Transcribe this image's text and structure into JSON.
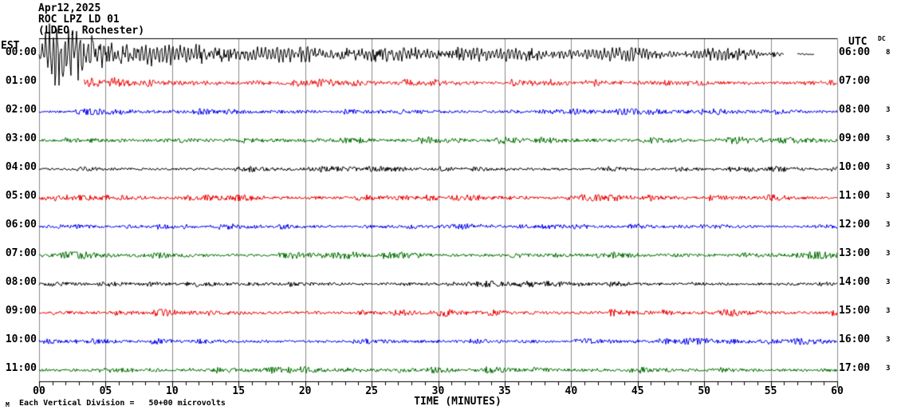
{
  "header": {
    "date": "Apr12,2025",
    "station": "ROC LPZ LD 01",
    "network": "(LDEO, Rochester)"
  },
  "axes": {
    "left_label": "EST",
    "right_label": "UTC",
    "dc_label": "DC",
    "x_label": "TIME (MINUTES)"
  },
  "footer": {
    "prefix": "M",
    "note": "Each Vertical Division =   50+00 microvolts"
  },
  "colors": {
    "black": "#000000",
    "red": "#ee0000",
    "blue": "#0000ee",
    "green": "#007000",
    "grid": "#8c8c8c",
    "frame": "#000000",
    "background": "#ffffff"
  },
  "chart_data": {
    "type": "line",
    "subtype": "helicorder-seismogram",
    "title": "ROC LPZ LD 01 (LDEO, Rochester) — Apr12,2025",
    "xlabel": "TIME (MINUTES)",
    "x_range": [
      0,
      60
    ],
    "x_major_tick_labels": [
      "00",
      "05",
      "10",
      "15",
      "20",
      "25",
      "30",
      "35",
      "40",
      "45",
      "50",
      "55",
      "60"
    ],
    "x_minor_tick_step_minutes": 1,
    "grid": "vertical lines every 5 minutes",
    "legend_position": "none",
    "annotations": {
      "event": "Large-amplitude seismic event begins ~00:01 EST on first trace, amplitude decays through the hour; elevated coda on 01:00 trace",
      "row0_data_gap": "00:00 trace ends near minute 56 with a small tail segment ~57-58.3, blank to 60",
      "row1_data_start": "01:00 trace begins near minute 3.4",
      "waveform_note": "waveforms are noise traces approximated by seeded pseudo-random envelopes"
    },
    "rows": [
      {
        "est": "00:00",
        "utc": "06:00",
        "dc": "8",
        "color": "black",
        "seed": 11,
        "segments": [
          {
            "start": 0,
            "end": 56.0,
            "sin": 0.55,
            "clamp": 1.15,
            "env": [
              [
                0,
                5
              ],
              [
                0.4,
                22
              ],
              [
                0.8,
                34
              ],
              [
                2.2,
                34
              ],
              [
                3.5,
                26
              ],
              [
                5,
                20
              ],
              [
                7,
                15
              ],
              [
                10,
                12
              ],
              [
                14,
                10
              ],
              [
                20,
                8.5
              ],
              [
                28,
                8
              ],
              [
                36,
                8
              ],
              [
                44,
                7.5
              ],
              [
                50,
                7
              ],
              [
                54,
                6
              ],
              [
                55.5,
                3.5
              ],
              [
                56,
                1.5
              ]
            ]
          },
          {
            "start": 57.0,
            "end": 58.3,
            "sin": 0.3,
            "clamp": 1.2,
            "env": [
              [
                57,
                1.4
              ],
              [
                58.3,
                0.7
              ]
            ]
          }
        ]
      },
      {
        "est": "01:00",
        "utc": "07:00",
        "dc": "",
        "color": "red",
        "seed": 22,
        "segments": [
          {
            "start": 3.4,
            "end": 60,
            "sin": 0.2,
            "clamp": 1.9,
            "env": [
              [
                3.4,
                8
              ],
              [
                4.5,
                6.5
              ],
              [
                6,
                5
              ],
              [
                9,
                3.5
              ],
              [
                14,
                2.8
              ],
              [
                30,
                2.6
              ],
              [
                60,
                2.5
              ]
            ]
          }
        ]
      },
      {
        "est": "02:00",
        "utc": "08:00",
        "dc": "3",
        "color": "blue",
        "seed": 33,
        "segments": [
          {
            "start": 0,
            "end": 60,
            "sin": 0.15,
            "clamp": 1.9,
            "env": [
              [
                0,
                2.0
              ],
              [
                60,
                2.0
              ]
            ]
          }
        ]
      },
      {
        "est": "03:00",
        "utc": "09:00",
        "dc": "3",
        "color": "green",
        "seed": 44,
        "segments": [
          {
            "start": 0,
            "end": 60,
            "sin": 0.15,
            "clamp": 1.9,
            "env": [
              [
                0,
                2.3
              ],
              [
                60,
                2.3
              ]
            ]
          }
        ]
      },
      {
        "est": "04:00",
        "utc": "10:00",
        "dc": "3",
        "color": "black",
        "seed": 55,
        "segments": [
          {
            "start": 0,
            "end": 60,
            "sin": 0.15,
            "clamp": 1.9,
            "env": [
              [
                0,
                1.9
              ],
              [
                60,
                1.9
              ]
            ]
          }
        ]
      },
      {
        "est": "05:00",
        "utc": "11:00",
        "dc": "3",
        "color": "red",
        "seed": 66,
        "segments": [
          {
            "start": 0,
            "end": 60,
            "sin": 0.15,
            "clamp": 1.9,
            "env": [
              [
                0,
                2.1
              ],
              [
                60,
                2.1
              ]
            ]
          }
        ]
      },
      {
        "est": "06:00",
        "utc": "12:00",
        "dc": "3",
        "color": "blue",
        "seed": 77,
        "segments": [
          {
            "start": 0,
            "end": 60,
            "sin": 0.15,
            "clamp": 1.9,
            "env": [
              [
                0,
                1.9
              ],
              [
                60,
                1.9
              ]
            ]
          }
        ]
      },
      {
        "est": "07:00",
        "utc": "13:00",
        "dc": "3",
        "color": "green",
        "seed": 88,
        "segments": [
          {
            "start": 0,
            "end": 60,
            "sin": 0.15,
            "clamp": 1.9,
            "env": [
              [
                0,
                2.3
              ],
              [
                60,
                2.3
              ]
            ]
          }
        ]
      },
      {
        "est": "08:00",
        "utc": "14:00",
        "dc": "3",
        "color": "black",
        "seed": 99,
        "segments": [
          {
            "start": 0,
            "end": 60,
            "sin": 0.15,
            "clamp": 1.9,
            "env": [
              [
                0,
                2.1
              ],
              [
                60,
                2.1
              ]
            ]
          }
        ]
      },
      {
        "est": "09:00",
        "utc": "15:00",
        "dc": "3",
        "color": "red",
        "seed": 110,
        "segments": [
          {
            "start": 0,
            "end": 60,
            "sin": 0.15,
            "clamp": 1.9,
            "env": [
              [
                0,
                2.3
              ],
              [
                60,
                2.3
              ]
            ]
          }
        ]
      },
      {
        "est": "10:00",
        "utc": "16:00",
        "dc": "3",
        "color": "blue",
        "seed": 121,
        "segments": [
          {
            "start": 0,
            "end": 60,
            "sin": 0.15,
            "clamp": 1.9,
            "env": [
              [
                0,
                2.1
              ],
              [
                60,
                2.1
              ]
            ]
          }
        ]
      },
      {
        "est": "11:00",
        "utc": "17:00",
        "dc": "3",
        "color": "green",
        "seed": 132,
        "segments": [
          {
            "start": 0,
            "end": 60,
            "sin": 0.15,
            "clamp": 1.9,
            "env": [
              [
                0,
                2.3
              ],
              [
                60,
                2.3
              ]
            ]
          }
        ]
      }
    ]
  }
}
